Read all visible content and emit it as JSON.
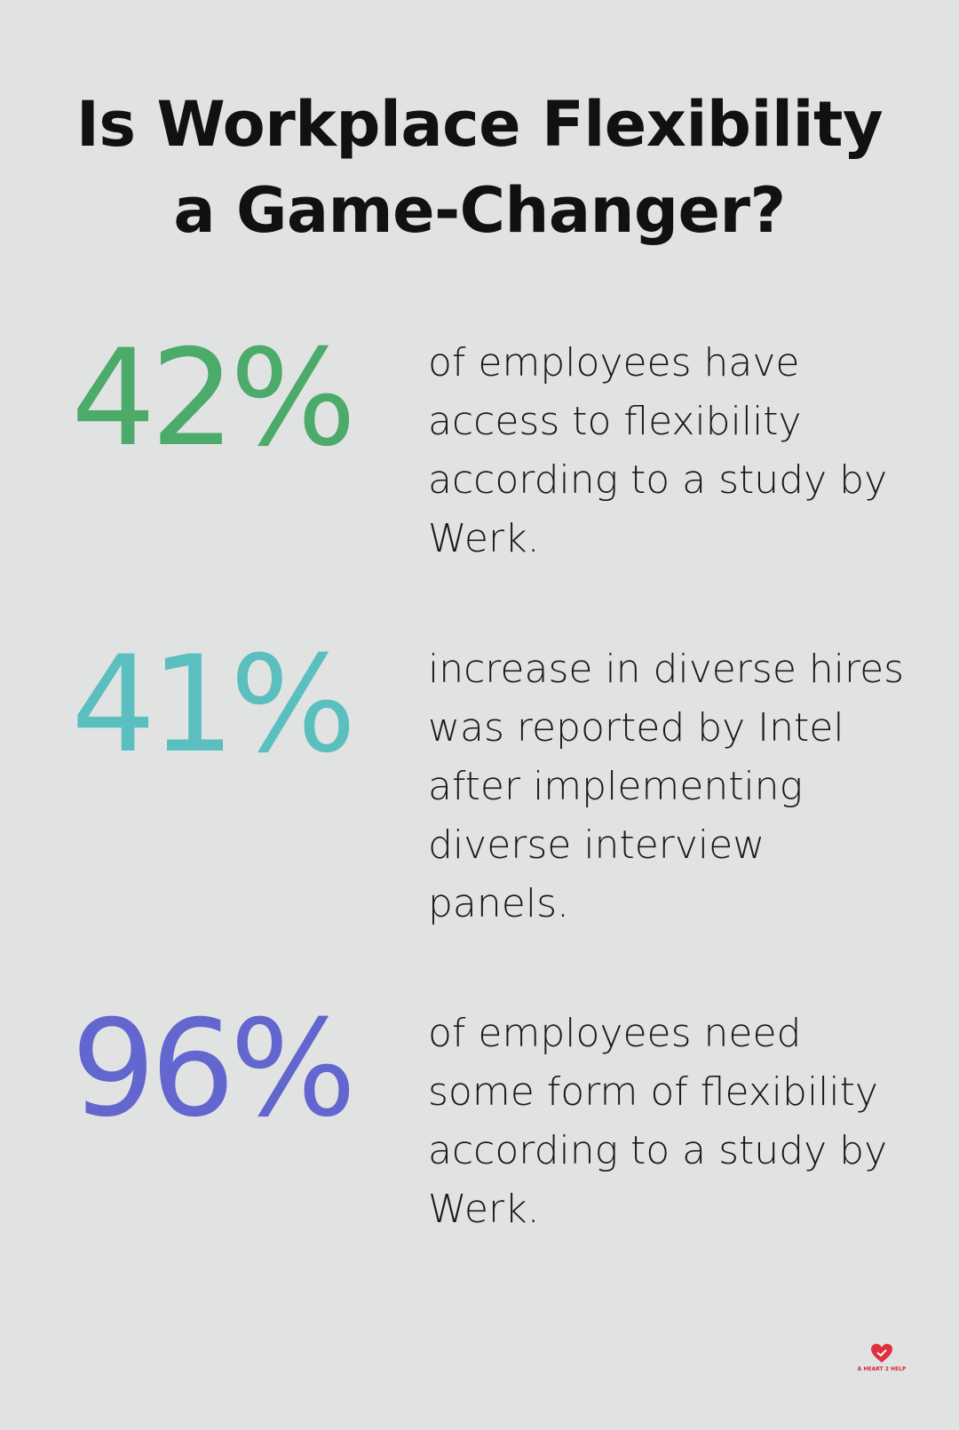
{
  "header": {
    "title": "Is Workplace Flexibility a Game-Changer?"
  },
  "stats": [
    {
      "value": "42%",
      "text": "of employees have access to flexibility according to a study by Werk.",
      "color": "#4caa6b"
    },
    {
      "value": "41%",
      "text": "increase in diverse hires was reported by Intel after implementing diverse interview panels.",
      "color": "#5bbfbf"
    },
    {
      "value": "96%",
      "text": "of employees need some form of flexibility according to a study by Werk.",
      "color": "#6366cf"
    }
  ],
  "logo": {
    "text": "A HEART 2 HELP"
  }
}
